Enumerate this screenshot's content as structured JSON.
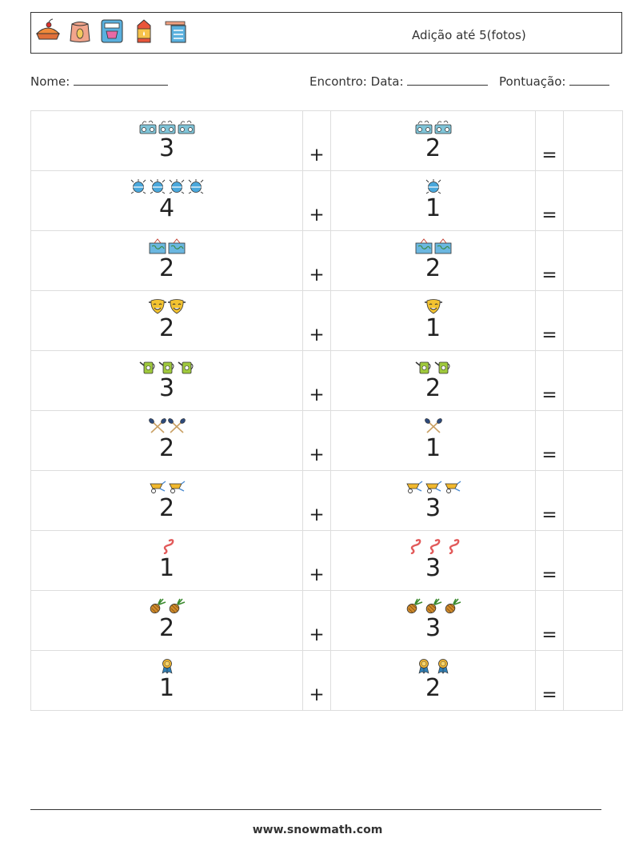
{
  "header": {
    "title": "Adição até 5(fotos)",
    "icons": [
      "pie-icon",
      "flour-sack-icon",
      "stand-mixer-icon",
      "milk-carton-icon",
      "recipe-card-icon"
    ]
  },
  "info": {
    "name_label": "Nome:",
    "session_label": "Encontro:",
    "date_label": "Data:",
    "score_label": "Pontuação:"
  },
  "symbols": {
    "plus": "+",
    "equals": "="
  },
  "problems": [
    {
      "a": "3",
      "b": "2",
      "icon": "radio-icon"
    },
    {
      "a": "4",
      "b": "1",
      "icon": "germ-icon"
    },
    {
      "a": "2",
      "b": "2",
      "icon": "map-icon"
    },
    {
      "a": "2",
      "b": "1",
      "icon": "theater-mask-icon"
    },
    {
      "a": "3",
      "b": "2",
      "icon": "watering-can-icon"
    },
    {
      "a": "2",
      "b": "1",
      "icon": "crossed-paddles-icon"
    },
    {
      "a": "2",
      "b": "3",
      "icon": "wheelbarrow-icon"
    },
    {
      "a": "1",
      "b": "3",
      "icon": "worm-icon"
    },
    {
      "a": "2",
      "b": "3",
      "icon": "pineapple-icon"
    },
    {
      "a": "1",
      "b": "2",
      "icon": "medal-icon"
    }
  ],
  "footer": {
    "website": "www.snowmath.com"
  },
  "colors": {
    "border": "#333333",
    "grid": "#dddddd"
  }
}
